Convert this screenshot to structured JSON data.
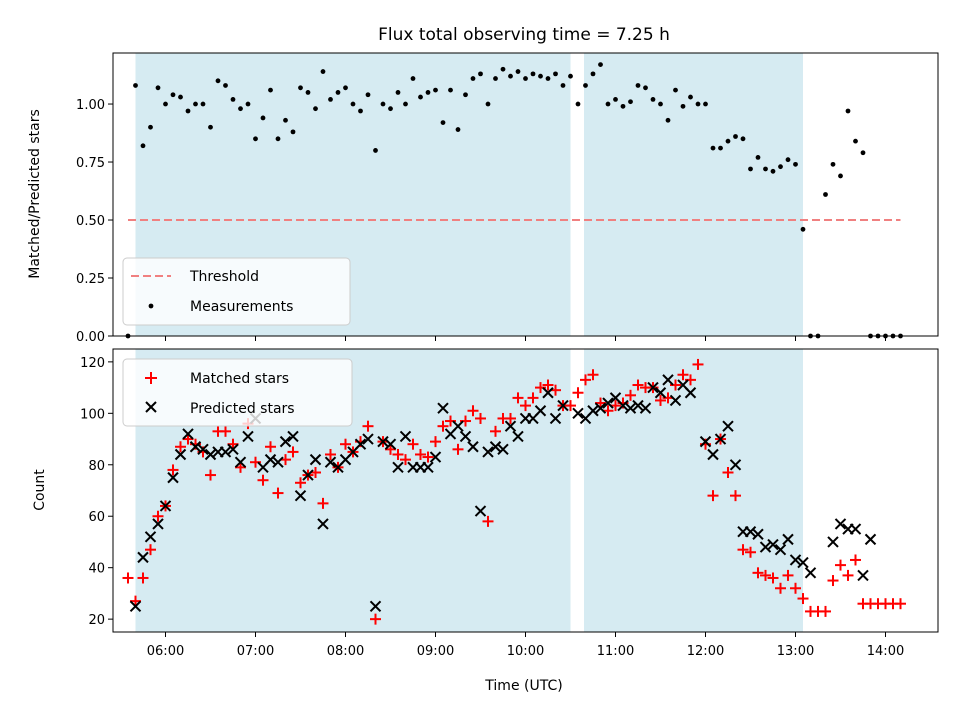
{
  "chart_data": [
    {
      "type": "scatter",
      "title": "Flux total observing time = 7.25 h",
      "xlabel": "",
      "ylabel": "Matched/Predicted stars",
      "ylim": [
        0,
        1.22
      ],
      "yticks": [
        "0.00",
        "0.25",
        "0.50",
        "0.75",
        "1.00"
      ],
      "xlim": [
        "05:25",
        "14:35"
      ],
      "xticks": [
        "06:00",
        "07:00",
        "08:00",
        "09:00",
        "10:00",
        "11:00",
        "12:00",
        "13:00",
        "14:00"
      ],
      "shaded_intervals": [
        [
          "05:40",
          "10:30"
        ],
        [
          "10:39",
          "13:05"
        ]
      ],
      "legend": {
        "placement": "lower-left",
        "entries": [
          "Threshold",
          "Measurements"
        ]
      },
      "threshold": {
        "name": "Threshold",
        "value": 0.5,
        "x_range": [
          "05:35",
          "14:10"
        ],
        "color": "#f08080",
        "style": "dashed"
      },
      "measurements": {
        "name": "Measurements",
        "color": "#000000",
        "x": [
          "05:35",
          "05:40",
          "05:45",
          "05:50",
          "05:55",
          "06:00",
          "06:05",
          "06:10",
          "06:15",
          "06:20",
          "06:25",
          "06:30",
          "06:35",
          "06:40",
          "06:45",
          "06:50",
          "06:55",
          "07:00",
          "07:05",
          "07:10",
          "07:15",
          "07:20",
          "07:25",
          "07:30",
          "07:35",
          "07:40",
          "07:45",
          "07:50",
          "07:55",
          "08:00",
          "08:05",
          "08:10",
          "08:15",
          "08:20",
          "08:25",
          "08:30",
          "08:35",
          "08:40",
          "08:45",
          "08:50",
          "08:55",
          "09:00",
          "09:05",
          "09:10",
          "09:15",
          "09:20",
          "09:25",
          "09:30",
          "09:35",
          "09:40",
          "09:45",
          "09:50",
          "09:55",
          "10:00",
          "10:05",
          "10:10",
          "10:15",
          "10:20",
          "10:25",
          "10:30",
          "10:35",
          "10:40",
          "10:45",
          "10:50",
          "10:55",
          "11:00",
          "11:05",
          "11:10",
          "11:15",
          "11:20",
          "11:25",
          "11:30",
          "11:35",
          "11:40",
          "11:45",
          "11:50",
          "11:55",
          "12:00",
          "12:05",
          "12:10",
          "12:15",
          "12:20",
          "12:25",
          "12:30",
          "12:35",
          "12:40",
          "12:45",
          "12:50",
          "12:55",
          "13:00",
          "13:05",
          "13:10",
          "13:15",
          "13:20",
          "13:25",
          "13:30",
          "13:35",
          "13:40",
          "13:45",
          "13:50",
          "13:55",
          "14:00",
          "14:05",
          "14:10"
        ],
        "y": [
          0.0,
          1.08,
          0.82,
          0.9,
          1.07,
          1.0,
          1.04,
          1.03,
          0.97,
          1.0,
          1.0,
          0.9,
          1.1,
          1.08,
          1.02,
          0.98,
          1.0,
          0.85,
          0.94,
          1.06,
          0.85,
          0.93,
          0.88,
          1.07,
          1.05,
          0.98,
          1.14,
          1.02,
          1.05,
          1.07,
          1.0,
          0.97,
          1.04,
          0.8,
          1.0,
          0.98,
          1.05,
          1.0,
          1.11,
          1.03,
          1.05,
          1.06,
          0.92,
          1.06,
          0.89,
          1.04,
          1.11,
          1.13,
          1.0,
          1.11,
          1.15,
          1.12,
          1.14,
          1.11,
          1.13,
          1.12,
          1.11,
          1.13,
          1.08,
          1.12,
          1.0,
          1.08,
          1.13,
          1.17,
          1.0,
          1.02,
          0.99,
          1.01,
          1.08,
          1.07,
          1.02,
          1.0,
          0.93,
          1.06,
          0.99,
          1.03,
          1.0,
          1.0,
          0.81,
          0.81,
          0.84,
          0.86,
          0.85,
          0.72,
          0.77,
          0.72,
          0.71,
          0.73,
          0.76,
          0.74,
          0.46,
          0.0,
          0.0,
          0.61,
          0.74,
          0.69,
          0.97,
          0.84,
          0.79,
          0.0,
          0.0,
          0.0,
          0.0,
          0.0
        ]
      }
    },
    {
      "type": "scatter",
      "title": "",
      "xlabel": "Time (UTC)",
      "ylabel": "Count",
      "ylim": [
        15,
        125
      ],
      "yticks": [
        "20",
        "40",
        "60",
        "80",
        "100",
        "120"
      ],
      "xlim": [
        "05:25",
        "14:35"
      ],
      "xticks": [
        "06:00",
        "07:00",
        "08:00",
        "09:00",
        "10:00",
        "11:00",
        "12:00",
        "13:00",
        "14:00"
      ],
      "shaded_intervals": [
        [
          "05:40",
          "10:30"
        ],
        [
          "10:39",
          "13:05"
        ]
      ],
      "legend": {
        "placement": "upper-left",
        "entries": [
          "Matched stars",
          "Predicted stars"
        ]
      },
      "series": [
        {
          "name": "Matched stars",
          "marker": "plus",
          "color": "#ff0000",
          "x": [
            "05:35",
            "05:40",
            "05:45",
            "05:50",
            "05:55",
            "06:00",
            "06:05",
            "06:10",
            "06:15",
            "06:20",
            "06:25",
            "06:30",
            "06:35",
            "06:40",
            "06:45",
            "06:50",
            "06:55",
            "07:00",
            "07:05",
            "07:10",
            "07:15",
            "07:20",
            "07:25",
            "07:30",
            "07:35",
            "07:40",
            "07:45",
            "07:50",
            "07:55",
            "08:00",
            "08:05",
            "08:10",
            "08:15",
            "08:20",
            "08:25",
            "08:30",
            "08:35",
            "08:40",
            "08:45",
            "08:50",
            "08:55",
            "09:00",
            "09:05",
            "09:10",
            "09:15",
            "09:20",
            "09:25",
            "09:30",
            "09:35",
            "09:40",
            "09:45",
            "09:50",
            "09:55",
            "10:00",
            "10:05",
            "10:10",
            "10:15",
            "10:20",
            "10:25",
            "10:30",
            "10:35",
            "10:40",
            "10:45",
            "10:50",
            "10:55",
            "11:00",
            "11:05",
            "11:10",
            "11:15",
            "11:20",
            "11:25",
            "11:30",
            "11:35",
            "11:40",
            "11:45",
            "11:50",
            "11:55",
            "12:00",
            "12:05",
            "12:10",
            "12:15",
            "12:20",
            "12:25",
            "12:30",
            "12:35",
            "12:40",
            "12:45",
            "12:50",
            "12:55",
            "13:00",
            "13:05",
            "13:10",
            "13:15",
            "13:20",
            "13:25",
            "13:30",
            "13:35",
            "13:40",
            "13:45",
            "13:50",
            "13:55",
            "14:00",
            "14:05",
            "14:10"
          ],
          "y": [
            36,
            27,
            36,
            47,
            60,
            64,
            78,
            87,
            90,
            88,
            85,
            76,
            93,
            93,
            88,
            79,
            96,
            81,
            74,
            87,
            69,
            82,
            85,
            73,
            76,
            77,
            65,
            84,
            79,
            88,
            85,
            89,
            95,
            20,
            89,
            86,
            84,
            82,
            88,
            84,
            83,
            89,
            95,
            97,
            86,
            97,
            101,
            98,
            58,
            93,
            98,
            98,
            106,
            103,
            106,
            110,
            111,
            109,
            103,
            103,
            108,
            113,
            115,
            104,
            101,
            103,
            104,
            107,
            111,
            110,
            110,
            105,
            106,
            111,
            115,
            113,
            119,
            88,
            68,
            90,
            77,
            68,
            47,
            46,
            38,
            37,
            36,
            32,
            37,
            32,
            28,
            23,
            23,
            23,
            35,
            41,
            37,
            43,
            26,
            26,
            26,
            26,
            26,
            26
          ]
        },
        {
          "name": "Predicted stars",
          "marker": "x",
          "color": "#000000",
          "x": [
            "05:40",
            "05:45",
            "05:50",
            "05:55",
            "06:00",
            "06:05",
            "06:10",
            "06:15",
            "06:20",
            "06:25",
            "06:30",
            "06:35",
            "06:40",
            "06:45",
            "06:50",
            "06:55",
            "07:00",
            "07:05",
            "07:10",
            "07:15",
            "07:20",
            "07:25",
            "07:30",
            "07:35",
            "07:40",
            "07:45",
            "07:50",
            "07:55",
            "08:00",
            "08:05",
            "08:10",
            "08:15",
            "08:20",
            "08:25",
            "08:30",
            "08:35",
            "08:40",
            "08:45",
            "08:50",
            "08:55",
            "09:00",
            "09:05",
            "09:10",
            "09:15",
            "09:20",
            "09:25",
            "09:30",
            "09:35",
            "09:40",
            "09:45",
            "09:50",
            "09:55",
            "10:00",
            "10:05",
            "10:10",
            "10:15",
            "10:20",
            "10:25",
            "10:35",
            "10:40",
            "10:45",
            "10:50",
            "10:55",
            "11:00",
            "11:05",
            "11:10",
            "11:15",
            "11:20",
            "11:25",
            "11:30",
            "11:35",
            "11:40",
            "11:45",
            "11:50",
            "12:00",
            "12:05",
            "12:10",
            "12:15",
            "12:20",
            "12:25",
            "12:30",
            "12:35",
            "12:40",
            "12:45",
            "12:50",
            "12:55",
            "13:00",
            "13:05",
            "13:10",
            "13:25",
            "13:30",
            "13:35",
            "13:40",
            "13:45",
            "13:50"
          ],
          "y": [
            25,
            44,
            52,
            57,
            64,
            75,
            84,
            92,
            87,
            86,
            84,
            85,
            85,
            86,
            81,
            91,
            98,
            79,
            82,
            81,
            89,
            91,
            68,
            76,
            82,
            57,
            81,
            79,
            82,
            85,
            88,
            90,
            25,
            89,
            88,
            79,
            91,
            79,
            79,
            79,
            83,
            102,
            92,
            95,
            91,
            87,
            62,
            85,
            87,
            86,
            95,
            91,
            98,
            98,
            101,
            108,
            98,
            103,
            100,
            98,
            101,
            102,
            104,
            106,
            103,
            102,
            103,
            102,
            110,
            108,
            113,
            105,
            111,
            108,
            89,
            84,
            90,
            95,
            80,
            54,
            54,
            53,
            48,
            49,
            47,
            51,
            43,
            42,
            38,
            50,
            57,
            55,
            55,
            37,
            51
          ]
        }
      ]
    }
  ]
}
